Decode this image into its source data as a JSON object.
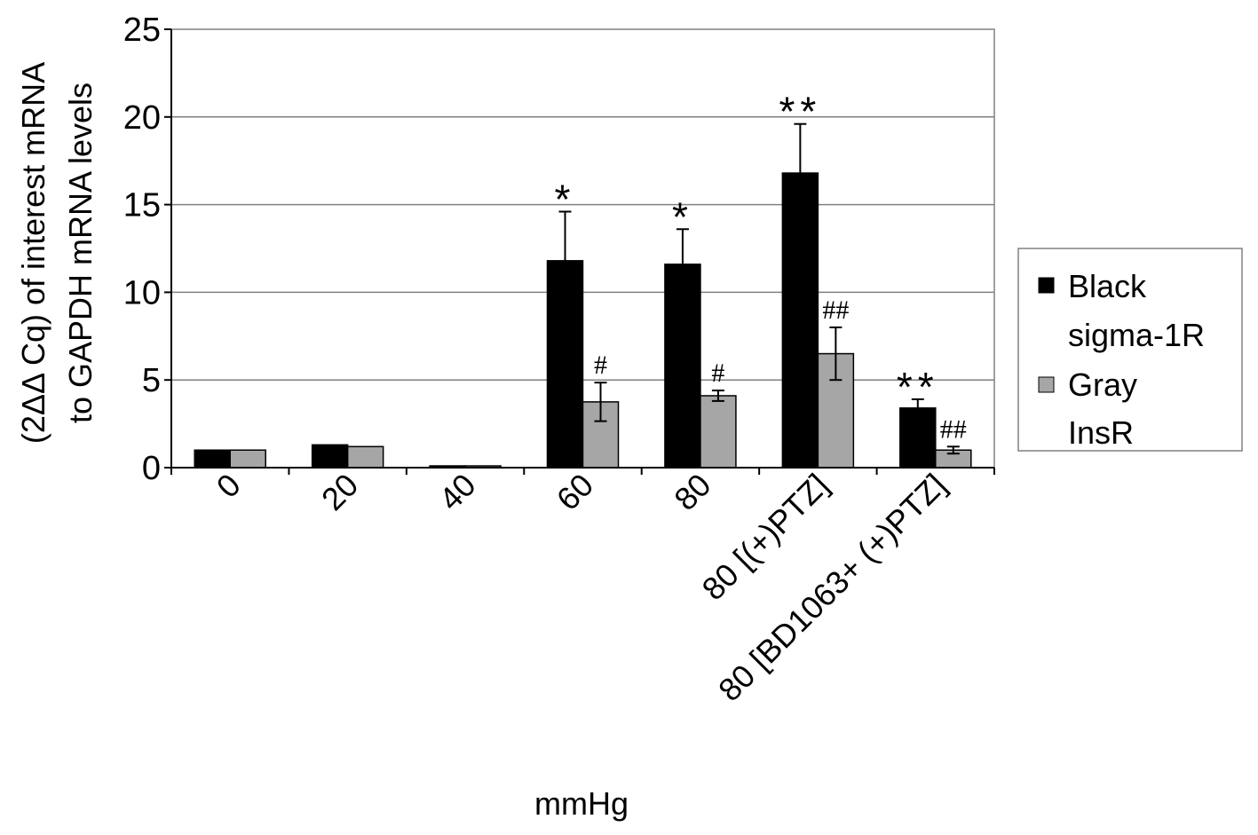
{
  "chart_data": {
    "type": "bar",
    "xlabel": "mmHg",
    "ylabel_lines": [
      "(2ΔΔ Cq) of interest mRNA",
      "to GAPDH mRNA levels"
    ],
    "ylim": [
      0,
      25
    ],
    "yticks": [
      0,
      5,
      10,
      15,
      20,
      25
    ],
    "grid": true,
    "legend_position": "right",
    "categories": [
      "0",
      "20",
      "40",
      "60",
      "80",
      "80 [(+)PTZ]",
      "80 [BD1063+ (+)PTZ]"
    ],
    "series": [
      {
        "legend_lines": [
          "Black",
          "sigma-1R"
        ],
        "color": "#000000",
        "values": [
          1.0,
          1.3,
          0.1,
          11.8,
          11.6,
          16.8,
          3.4
        ],
        "errors": [
          0.05,
          0.05,
          0.05,
          2.8,
          2.0,
          2.8,
          0.5
        ],
        "annotations": [
          "",
          "",
          "",
          "*",
          "*",
          "**",
          "**"
        ]
      },
      {
        "legend_lines": [
          "Gray",
          "InsR"
        ],
        "color": "#a6a6a6",
        "values": [
          1.0,
          1.2,
          0.1,
          3.75,
          4.1,
          6.5,
          1.0
        ],
        "errors": [
          0.05,
          0.05,
          0.05,
          1.1,
          0.3,
          1.5,
          0.2
        ],
        "annotations": [
          "",
          "",
          "",
          "#",
          "#",
          "##",
          "##"
        ]
      }
    ]
  }
}
